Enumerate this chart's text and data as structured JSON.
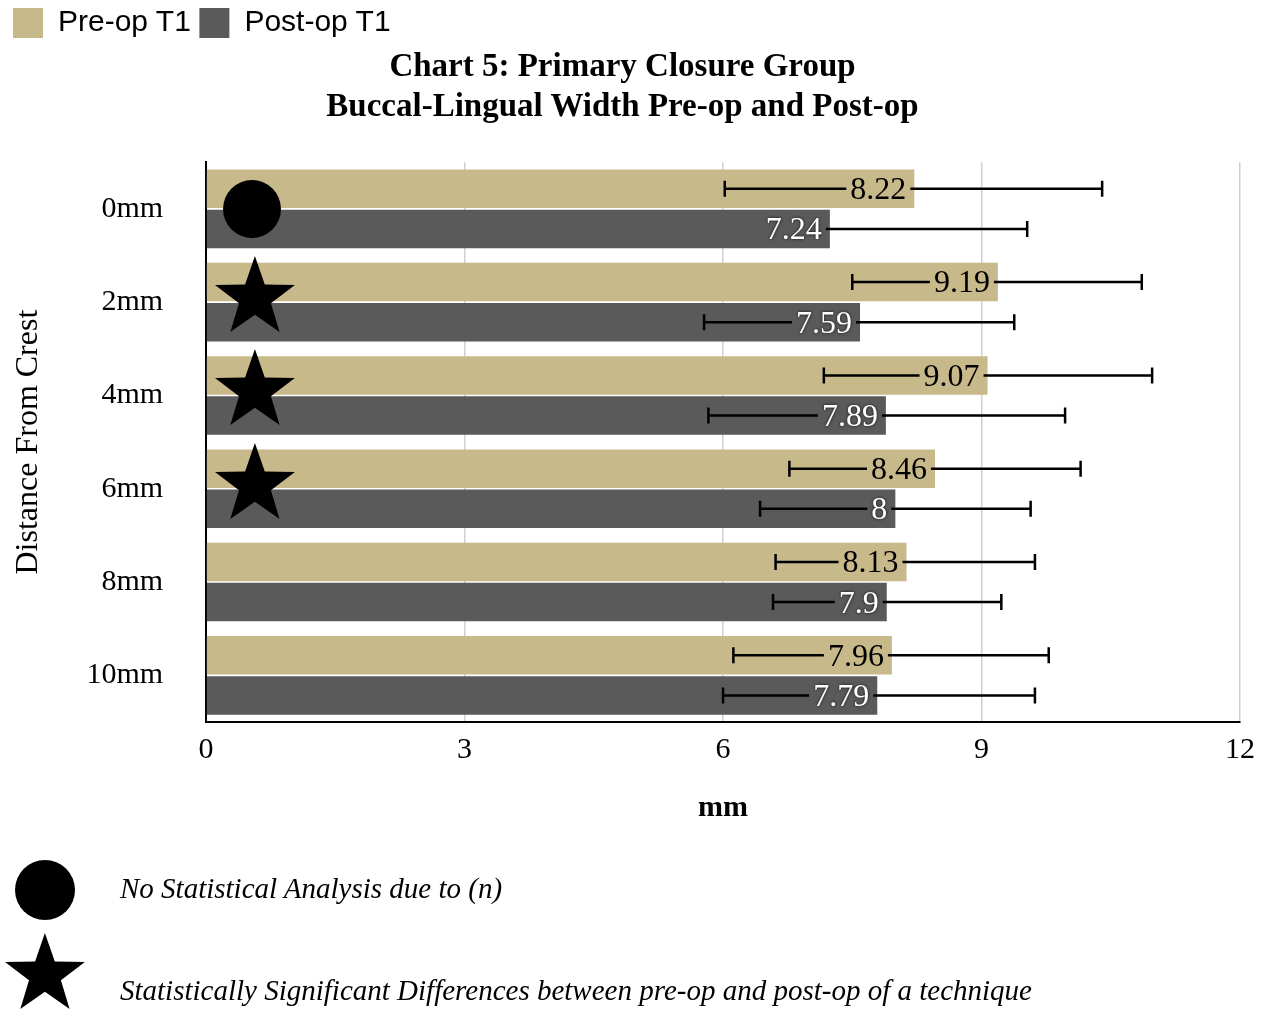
{
  "chart_data": {
    "type": "bar",
    "orientation": "horizontal",
    "title": "Chart 5: Primary Closure Group\nBuccal-Lingual Width Pre-op and Post-op",
    "xlabel": "mm",
    "ylabel": "Distance From Crest",
    "categories": [
      "0mm",
      "2mm",
      "4mm",
      "6mm",
      "8mm",
      "10mm"
    ],
    "series": [
      {
        "name": "Pre-op T1",
        "color": "#c8b98b",
        "values": [
          8.22,
          9.19,
          9.07,
          8.46,
          8.13,
          7.96
        ],
        "errors": [
          [
            6.02,
            10.4
          ],
          [
            7.5,
            10.86
          ],
          [
            7.17,
            10.98
          ],
          [
            6.77,
            10.15
          ],
          [
            6.61,
            9.62
          ],
          [
            6.12,
            9.78
          ]
        ]
      },
      {
        "name": "Post-op T1",
        "color": "#5a5a5a",
        "values": [
          7.24,
          7.59,
          7.89,
          8,
          7.9,
          7.79
        ],
        "errors": [
          [
            6.92,
            9.53
          ],
          [
            5.78,
            9.38
          ],
          [
            5.83,
            9.97
          ],
          [
            6.43,
            9.57
          ],
          [
            6.58,
            9.23
          ],
          [
            6.0,
            9.62
          ]
        ]
      }
    ],
    "xlim": [
      0,
      12
    ],
    "xticks": [
      0,
      3,
      6,
      9,
      12
    ],
    "grid": "x",
    "legend": "top left",
    "data_labels": true,
    "annotations": [
      "No Statistical Analysis due to (n)",
      "Statistically Significant Differences between pre-op and post-op of a technique"
    ]
  }
}
